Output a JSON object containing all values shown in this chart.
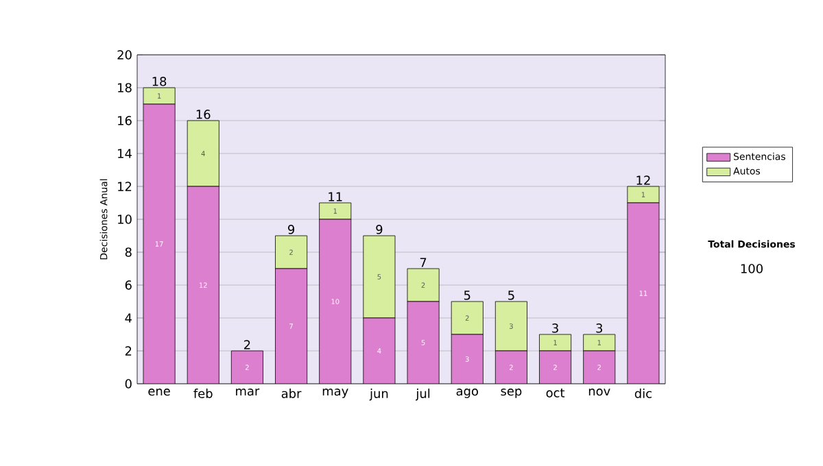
{
  "chart_data": {
    "type": "bar",
    "stacked": true,
    "ylabel": "Decisiones Anual",
    "categories": [
      "ene",
      "feb",
      "mar",
      "abr",
      "may",
      "jun",
      "jul",
      "ago",
      "sep",
      "oct",
      "nov",
      "dic"
    ],
    "series": [
      {
        "name": "Sentencias",
        "color": "#dd7fcf",
        "values": [
          17,
          12,
          2,
          7,
          10,
          4,
          5,
          3,
          2,
          2,
          2,
          11
        ],
        "value_labels": [
          "17",
          "12",
          "2",
          "7",
          "10",
          "4",
          "5",
          "3",
          "2",
          "2",
          "2",
          "11"
        ]
      },
      {
        "name": "Autos",
        "color": "#d6ee9e",
        "values": [
          1,
          4,
          0,
          2,
          1,
          5,
          2,
          2,
          3,
          1,
          1,
          1
        ],
        "value_labels": [
          "1",
          "4",
          null,
          "2",
          "1",
          "5",
          "2",
          "2",
          "3",
          "1",
          "1",
          "1"
        ]
      }
    ],
    "totals": [
      "18",
      "16",
      "2",
      "9",
      "11",
      "9",
      "7",
      "5",
      "5",
      "3",
      "3",
      "12"
    ],
    "ylim": [
      0,
      20
    ],
    "yticks": [
      0,
      2,
      4,
      6,
      8,
      10,
      12,
      14,
      16,
      18,
      20
    ],
    "grid": "y",
    "legend": "right",
    "annotations": [
      "Total Decisiones",
      "100"
    ]
  }
}
